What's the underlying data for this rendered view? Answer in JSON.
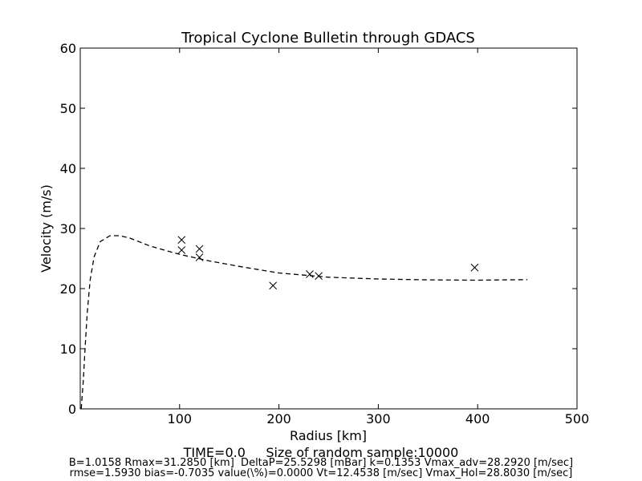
{
  "chart_data": {
    "type": "scatter",
    "title": "Tropical Cyclone Bulletin through GDACS",
    "xlabel": "Radius [km]",
    "ylabel": "Velocity (m/s)",
    "xlim": [
      0,
      500
    ],
    "ylim": [
      0,
      60
    ],
    "x_ticks": [
      100,
      200,
      300,
      400,
      500
    ],
    "y_ticks": [
      0,
      10,
      20,
      30,
      40,
      50,
      60
    ],
    "grid": false,
    "points_marker": "x",
    "points": [
      {
        "x": 102,
        "y": 28.1
      },
      {
        "x": 102,
        "y": 26.4
      },
      {
        "x": 120,
        "y": 26.6
      },
      {
        "x": 120,
        "y": 25.2
      },
      {
        "x": 194,
        "y": 20.5
      },
      {
        "x": 231,
        "y": 22.4
      },
      {
        "x": 240,
        "y": 22.1
      },
      {
        "x": 397,
        "y": 23.5
      }
    ],
    "curve_style": "dashed",
    "curve": [
      {
        "x": 1,
        "y": 0
      },
      {
        "x": 3,
        "y": 4.5
      },
      {
        "x": 5,
        "y": 10.5
      },
      {
        "x": 7,
        "y": 16
      },
      {
        "x": 10,
        "y": 21.5
      },
      {
        "x": 14,
        "y": 25.3
      },
      {
        "x": 20,
        "y": 27.8
      },
      {
        "x": 30,
        "y": 28.8
      },
      {
        "x": 40,
        "y": 28.8
      },
      {
        "x": 50,
        "y": 28.4
      },
      {
        "x": 70,
        "y": 27.1
      },
      {
        "x": 100,
        "y": 25.7
      },
      {
        "x": 130,
        "y": 24.6
      },
      {
        "x": 160,
        "y": 23.7
      },
      {
        "x": 200,
        "y": 22.6
      },
      {
        "x": 250,
        "y": 21.9
      },
      {
        "x": 300,
        "y": 21.6
      },
      {
        "x": 350,
        "y": 21.45
      },
      {
        "x": 400,
        "y": 21.4
      },
      {
        "x": 450,
        "y": 21.5
      }
    ]
  },
  "footer": {
    "line1": "TIME=0.0     Size of random sample:10000",
    "line2": "B=1.0158 Rmax=31.2850 [km]  DeltaP=25.5298 [mBar] k=0.1353 Vmax_adv=28.2920 [m/sec]",
    "line3": "rmse=1.5930 bias=-0.7035 value(\\%)=0.0000 Vt=12.4538 [m/sec] Vmax_Hol=28.8030 [m/sec]"
  }
}
